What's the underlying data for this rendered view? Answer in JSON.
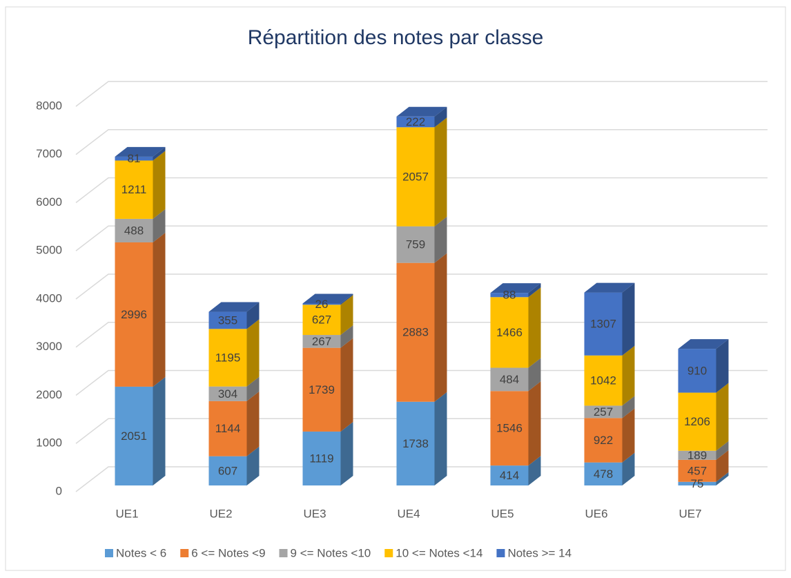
{
  "chart_data": {
    "type": "bar3d_stacked",
    "title": "Répartition des notes par classe",
    "categories": [
      "UE1",
      "UE2",
      "UE3",
      "UE4",
      "UE5",
      "UE6",
      "UE7"
    ],
    "series": [
      {
        "name": "Notes < 6",
        "color": "#5b9bd5",
        "values": [
          2051,
          607,
          1119,
          1738,
          414,
          478,
          75
        ]
      },
      {
        "name": "6 <= Notes <9",
        "color": "#ed7d31",
        "values": [
          2996,
          1144,
          1739,
          2883,
          1546,
          922,
          457
        ]
      },
      {
        "name": "9 <= Notes <10",
        "color": "#a5a5a5",
        "values": [
          488,
          304,
          267,
          759,
          484,
          257,
          189
        ]
      },
      {
        "name": "10 <= Notes <14",
        "color": "#ffc000",
        "values": [
          1211,
          1195,
          627,
          2057,
          1466,
          1042,
          1206
        ]
      },
      {
        "name": "Notes >= 14",
        "color": "#4472c4",
        "values": [
          81,
          355,
          26,
          222,
          88,
          1307,
          910
        ]
      }
    ],
    "ylim": [
      0,
      8000
    ],
    "yticks": [
      0,
      1000,
      2000,
      3000,
      4000,
      5000,
      6000,
      7000,
      8000
    ],
    "grid": true,
    "legend": "bottom"
  }
}
